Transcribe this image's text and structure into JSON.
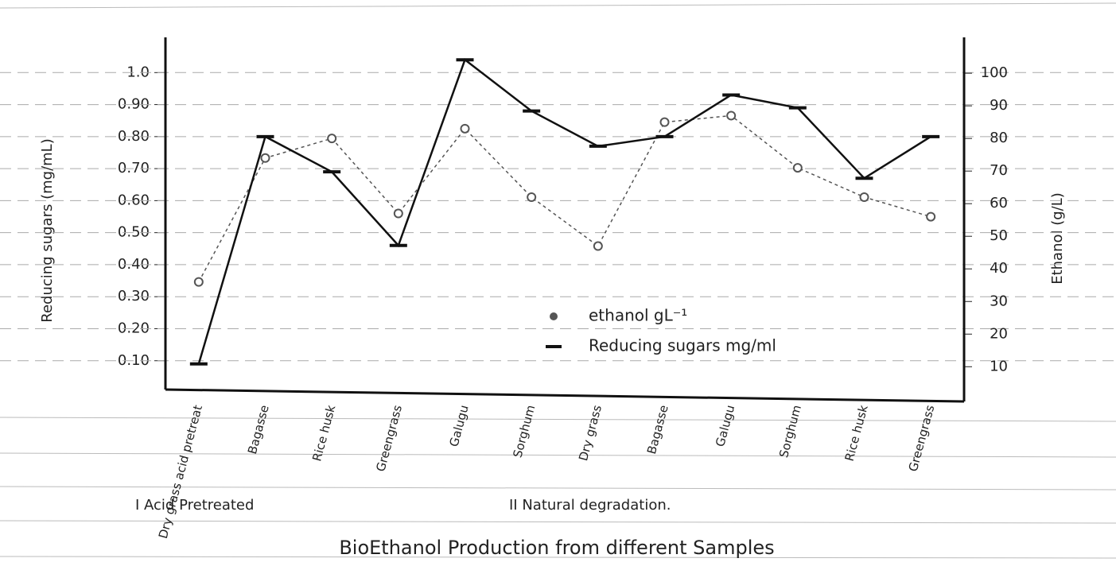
{
  "chart_data": {
    "type": "line",
    "title": "BioEthanol Production from different Samples",
    "y_label": "Reducing sugars (mg/mL)",
    "y2_label": "Ethanol (g/L)",
    "categories": [
      "Dry grass acid pretreat",
      "Bagasse",
      "Rice husk",
      "Greengrass",
      "Galugu",
      "Sorghum",
      "Dry grass",
      "Bagasse",
      "Galugu",
      "Sorghum",
      "Rice husk",
      "Greengrass"
    ],
    "groups": [
      "I Acid Pretreated",
      "II Natural degradation."
    ],
    "series": [
      {
        "name": "ethanol gL⁻¹",
        "color": "#555555",
        "axis": "y2",
        "marker": "circle",
        "values": [
          36,
          74,
          80,
          57,
          83,
          62,
          47,
          85,
          87,
          71,
          62,
          56
        ]
      },
      {
        "name": "Reducing sugars mg/ml",
        "color": "#111111",
        "axis": "y",
        "marker": "dash",
        "values": [
          0.09,
          0.8,
          0.69,
          0.46,
          1.04,
          0.88,
          0.77,
          0.8,
          0.93,
          0.89,
          0.67,
          0.8
        ]
      }
    ],
    "ylim": [
      0.01,
      1.11
    ],
    "yticks": [
      {
        "value": 0.1,
        "label": "0.10"
      },
      {
        "value": 0.2,
        "label": "0.20"
      },
      {
        "value": 0.3,
        "label": "0.30"
      },
      {
        "value": 0.4,
        "label": "0.40"
      },
      {
        "value": 0.5,
        "label": "0.50"
      },
      {
        "value": 0.6,
        "label": "0.60"
      },
      {
        "value": 0.7,
        "label": "0.70"
      },
      {
        "value": 0.8,
        "label": "0.80"
      },
      {
        "value": 0.9,
        "label": "0.90"
      },
      {
        "value": 1,
        "label": "1.0"
      }
    ],
    "y2lim": [
      3,
      111
    ],
    "y2ticks": [
      10,
      20,
      30,
      40,
      50,
      60,
      70,
      80,
      90,
      100
    ],
    "grid": true,
    "legend": "center"
  }
}
